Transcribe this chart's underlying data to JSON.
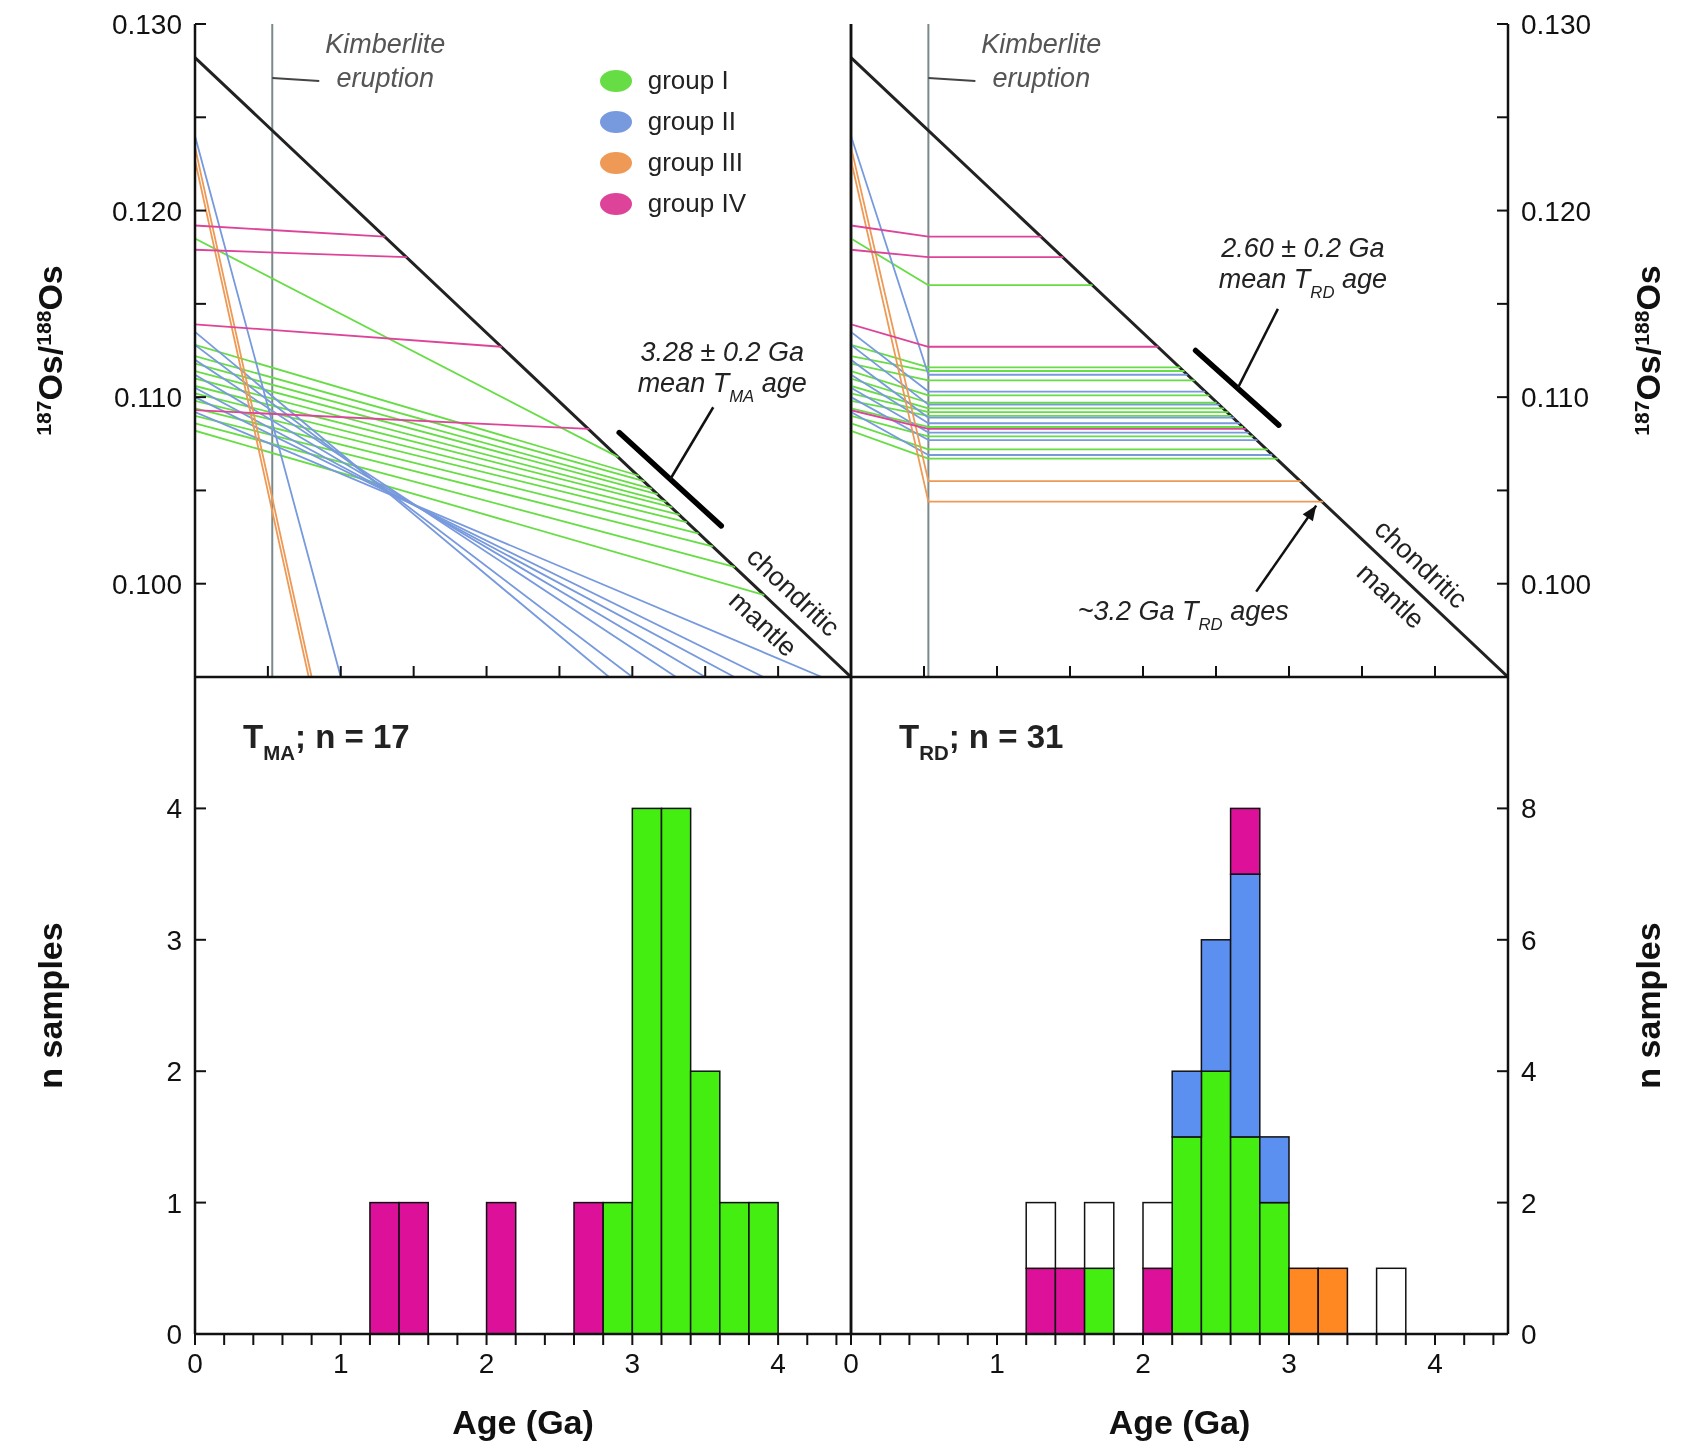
{
  "chart_data": [
    {
      "type": "line",
      "ylabel": "$^{187}$Os/$^{188}$Os",
      "xlim": [
        0,
        4.5
      ],
      "xticks": [
        0,
        0.5,
        1,
        1.5,
        2,
        2.5,
        3,
        3.5,
        4,
        4.5
      ],
      "ylim": [
        0.095,
        0.13
      ],
      "yticks": [
        {
          "value": 0.1,
          "label": "0.100"
        },
        {
          "value": 0.105,
          "label": null
        },
        {
          "value": 0.11,
          "label": "0.110"
        },
        {
          "value": 0.115,
          "label": null
        },
        {
          "value": 0.12,
          "label": "0.120"
        },
        {
          "value": 0.125,
          "label": null
        },
        {
          "value": 0.13,
          "label": "0.130"
        }
      ],
      "tick_labels": "y",
      "legend": "top right",
      "ref_lines": [
        {
          "axis": "x",
          "value": 0.53,
          "label": "Kimberlite eruption",
          "color": "#7a8a8a"
        }
      ],
      "annotations": [
        {
          "text": "3.28 ± 0.2 Ga mean T$_{MA}$ age",
          "x": 3.26,
          "y": 0.1056
        },
        {
          "text": "chondritic mantle",
          "x": 4.0,
          "y": 0.0987
        }
      ],
      "series": [
        {
          "x": [
            0,
            4.5
          ],
          "values": [
            0.1282,
            0.095
          ],
          "color": "#222222"
        },
        {
          "x": [
            2.91,
            3.61
          ],
          "values": [
            0.1081,
            0.1031
          ],
          "color": "#000000"
        },
        {
          "name": "group I",
          "x": [
            0,
            2.9
          ],
          "values": [
            0.1185,
            0.1068
          ],
          "color": "#66dd44"
        },
        {
          "x": [
            0,
            3.04
          ],
          "values": [
            0.1128,
            0.1058
          ],
          "color": "#66dd44"
        },
        {
          "x": [
            0,
            3.08
          ],
          "values": [
            0.1122,
            0.1055
          ],
          "color": "#66dd44"
        },
        {
          "x": [
            0,
            3.13
          ],
          "values": [
            0.1118,
            0.1051
          ],
          "color": "#66dd44"
        },
        {
          "x": [
            0,
            3.17
          ],
          "values": [
            0.1114,
            0.1048
          ],
          "color": "#66dd44"
        },
        {
          "x": [
            0,
            3.23
          ],
          "values": [
            0.111,
            0.1044
          ],
          "color": "#66dd44"
        },
        {
          "x": [
            0,
            3.27
          ],
          "values": [
            0.1106,
            0.1041
          ],
          "color": "#66dd44"
        },
        {
          "x": [
            0,
            3.32
          ],
          "values": [
            0.1102,
            0.1037
          ],
          "color": "#66dd44"
        },
        {
          "x": [
            0,
            3.37
          ],
          "values": [
            0.1098,
            0.1033
          ],
          "color": "#66dd44"
        },
        {
          "x": [
            0,
            3.45
          ],
          "values": [
            0.1094,
            0.1027
          ],
          "color": "#66dd44"
        },
        {
          "x": [
            0,
            3.55
          ],
          "values": [
            0.109,
            0.102
          ],
          "color": "#66dd44"
        },
        {
          "x": [
            0,
            3.7
          ],
          "values": [
            0.1086,
            0.1009
          ],
          "color": "#66dd44"
        },
        {
          "x": [
            0,
            3.9
          ],
          "values": [
            0.1082,
            0.0994
          ],
          "color": "#66dd44"
        },
        {
          "name": "group II",
          "x": [
            0,
            1.0
          ],
          "values": [
            0.124,
            0.095
          ],
          "color": "#7799dd"
        },
        {
          "x": [
            0,
            2.84
          ],
          "values": [
            0.1135,
            0.095
          ],
          "color": "#7799dd"
        },
        {
          "x": [
            0,
            3.0
          ],
          "values": [
            0.1128,
            0.095
          ],
          "color": "#7799dd"
        },
        {
          "x": [
            0,
            3.3
          ],
          "values": [
            0.112,
            0.095
          ],
          "color": "#7799dd"
        },
        {
          "x": [
            0,
            3.5
          ],
          "values": [
            0.1112,
            0.095
          ],
          "color": "#7799dd"
        },
        {
          "x": [
            0,
            3.7
          ],
          "values": [
            0.1105,
            0.095
          ],
          "color": "#7799dd"
        },
        {
          "x": [
            0,
            3.9
          ],
          "values": [
            0.11,
            0.095
          ],
          "color": "#7799dd"
        },
        {
          "x": [
            0,
            4.3
          ],
          "values": [
            0.1092,
            0.095
          ],
          "color": "#7799dd"
        },
        {
          "name": "group III",
          "x": [
            0,
            0.8
          ],
          "values": [
            0.1234,
            0.095
          ],
          "color": "#ee9955"
        },
        {
          "x": [
            0,
            0.78
          ],
          "values": [
            0.1227,
            0.095
          ],
          "color": "#ee9955"
        },
        {
          "name": "group IV",
          "x": [
            0,
            1.3
          ],
          "values": [
            0.1192,
            0.1186
          ],
          "color": "#dd4499"
        },
        {
          "x": [
            0,
            1.45
          ],
          "values": [
            0.1179,
            0.1175
          ],
          "color": "#dd4499"
        },
        {
          "x": [
            0,
            2.1
          ],
          "values": [
            0.1139,
            0.1127
          ],
          "color": "#dd4499"
        },
        {
          "x": [
            0,
            2.7
          ],
          "values": [
            0.1093,
            0.1083
          ],
          "color": "#dd4499"
        }
      ]
    },
    {
      "type": "line",
      "ylabel": "$^{187}$Os/$^{188}$Os",
      "xlim": [
        0,
        4.5
      ],
      "xticks": [
        0,
        0.5,
        1,
        1.5,
        2,
        2.5,
        3,
        3.5,
        4,
        4.5
      ],
      "ylim": [
        0.095,
        0.13
      ],
      "yticks": [
        {
          "value": 0.1,
          "label": "0.100"
        },
        {
          "value": 0.105,
          "label": null
        },
        {
          "value": 0.11,
          "label": "0.110"
        },
        {
          "value": 0.115,
          "label": null
        },
        {
          "value": 0.12,
          "label": "0.120"
        },
        {
          "value": 0.125,
          "label": null
        },
        {
          "value": 0.13,
          "label": "0.130"
        }
      ],
      "tick_labels": "y",
      "ref_lines": [
        {
          "axis": "x",
          "value": 0.53,
          "label": "Kimberlite eruption",
          "color": "#7a8a8a"
        }
      ],
      "annotations": [
        {
          "text": "2.60 ± 0.2 Ga mean T$_{RD}$ age",
          "x": 2.65,
          "y": 0.1105
        },
        {
          "text": "~3.2 Ga T$_{RD}$ ages",
          "x": 3.2,
          "y": 0.1044
        },
        {
          "text": "chondritic mantle",
          "x": 3.8,
          "y": 0.1002
        }
      ],
      "series": [
        {
          "x": [
            0,
            4.5
          ],
          "values": [
            0.1282,
            0.095
          ],
          "color": "#222222"
        },
        {
          "x": [
            2.36,
            2.93
          ],
          "values": [
            0.1125,
            0.1085
          ],
          "color": "#000000"
        },
        {
          "x": [
            0,
            0.53,
            1.65
          ],
          "values": [
            0.1185,
            0.116,
            0.116
          ],
          "color": "#66dd44"
        },
        {
          "x": [
            0,
            0.53,
            2.25
          ],
          "values": [
            0.1128,
            0.1116,
            0.1116
          ],
          "color": "#66dd44"
        },
        {
          "x": [
            0,
            0.53,
            2.28
          ],
          "values": [
            0.1122,
            0.1114,
            0.1114
          ],
          "color": "#66dd44"
        },
        {
          "x": [
            0,
            0.53,
            2.35
          ],
          "values": [
            0.1118,
            0.1109,
            0.1109
          ],
          "color": "#66dd44"
        },
        {
          "x": [
            0,
            0.53,
            2.45
          ],
          "values": [
            0.1114,
            0.1101,
            0.1101
          ],
          "color": "#66dd44"
        },
        {
          "x": [
            0,
            0.53,
            2.5
          ],
          "values": [
            0.111,
            0.1097,
            0.1097
          ],
          "color": "#66dd44"
        },
        {
          "x": [
            0,
            0.53,
            2.55
          ],
          "values": [
            0.1106,
            0.1094,
            0.1094
          ],
          "color": "#66dd44"
        },
        {
          "x": [
            0,
            0.53,
            2.58
          ],
          "values": [
            0.1102,
            0.1092,
            0.1092
          ],
          "color": "#66dd44"
        },
        {
          "x": [
            0,
            0.53,
            2.6
          ],
          "values": [
            0.1098,
            0.109,
            0.109
          ],
          "color": "#66dd44"
        },
        {
          "x": [
            0,
            0.53,
            2.68
          ],
          "values": [
            0.1094,
            0.1084,
            0.1084
          ],
          "color": "#66dd44"
        },
        {
          "x": [
            0,
            0.53,
            2.75
          ],
          "values": [
            0.109,
            0.1079,
            0.1079
          ],
          "color": "#66dd44"
        },
        {
          "x": [
            0,
            0.53,
            2.85
          ],
          "values": [
            0.1086,
            0.1072,
            0.1072
          ],
          "color": "#66dd44"
        },
        {
          "x": [
            0,
            0.53,
            2.92
          ],
          "values": [
            0.1082,
            0.1067,
            0.1067
          ],
          "color": "#66dd44"
        },
        {
          "x": [
            0,
            0.53,
            2.3
          ],
          "values": [
            0.124,
            0.1112,
            0.1112
          ],
          "color": "#7799dd"
        },
        {
          "x": [
            0,
            0.53,
            2.42
          ],
          "values": [
            0.1135,
            0.1103,
            0.1103
          ],
          "color": "#7799dd"
        },
        {
          "x": [
            0,
            0.53,
            2.52
          ],
          "values": [
            0.1128,
            0.1096,
            0.1096
          ],
          "color": "#7799dd"
        },
        {
          "x": [
            0,
            0.53,
            2.62
          ],
          "values": [
            0.112,
            0.1089,
            0.1089
          ],
          "color": "#7799dd"
        },
        {
          "x": [
            0,
            0.53,
            2.66
          ],
          "values": [
            0.1112,
            0.1086,
            0.1086
          ],
          "color": "#7799dd"
        },
        {
          "x": [
            0,
            0.53,
            2.72
          ],
          "values": [
            0.1105,
            0.1081,
            0.1081
          ],
          "color": "#7799dd"
        },
        {
          "x": [
            0,
            0.53,
            2.78
          ],
          "values": [
            0.11,
            0.1077,
            0.1077
          ],
          "color": "#7799dd"
        },
        {
          "x": [
            0,
            0.53,
            2.88
          ],
          "values": [
            0.1092,
            0.1069,
            0.1069
          ],
          "color": "#7799dd"
        },
        {
          "x": [
            0,
            0.53,
            3.08
          ],
          "values": [
            0.1234,
            0.1055,
            0.1055
          ],
          "color": "#ee9955"
        },
        {
          "x": [
            0,
            0.53,
            3.23
          ],
          "values": [
            0.1227,
            0.1044,
            0.1044
          ],
          "color": "#ee9955"
        },
        {
          "x": [
            0,
            0.53,
            1.3
          ],
          "values": [
            0.1192,
            0.1186,
            0.1186
          ],
          "color": "#dd4499"
        },
        {
          "x": [
            0,
            0.53,
            1.45
          ],
          "values": [
            0.1179,
            0.1175,
            0.1175
          ],
          "color": "#dd4499"
        },
        {
          "x": [
            0,
            0.53,
            2.1
          ],
          "values": [
            0.1139,
            0.1127,
            0.1127
          ],
          "color": "#dd4499"
        },
        {
          "x": [
            0,
            0.53,
            2.7
          ],
          "values": [
            0.1093,
            0.1083,
            0.1083
          ],
          "color": "#dd4499"
        }
      ]
    },
    {
      "type": "bar",
      "stacked": true,
      "xlabel": "Age (Ga)",
      "ylabel": "n samples",
      "xlim": [
        0,
        4.5
      ],
      "xticks": [
        0,
        {
          "value": 0.2,
          "label": null
        },
        {
          "value": 0.4,
          "label": null
        },
        {
          "value": 0.6,
          "label": null
        },
        {
          "value": 0.8,
          "label": null
        },
        1,
        {
          "value": 1.2,
          "label": null
        },
        {
          "value": 1.4,
          "label": null
        },
        {
          "value": 1.6,
          "label": null
        },
        {
          "value": 1.8,
          "label": null
        },
        2,
        {
          "value": 2.2,
          "label": null
        },
        {
          "value": 2.4,
          "label": null
        },
        {
          "value": 2.6,
          "label": null
        },
        {
          "value": 2.8,
          "label": null
        },
        3,
        {
          "value": 3.2,
          "label": null
        },
        {
          "value": 3.4,
          "label": null
        },
        {
          "value": 3.6,
          "label": null
        },
        {
          "value": 3.8,
          "label": null
        },
        4,
        {
          "value": 4.2,
          "label": null
        },
        {
          "value": 4.4,
          "label": null
        }
      ],
      "ylim": [
        0,
        5
      ],
      "yticks": [
        0,
        1,
        2,
        3,
        4
      ],
      "annotations": [
        "T$_{MA}$; n = 17"
      ],
      "x": [
        1.3,
        1.5,
        1.7,
        1.9,
        2.1,
        2.3,
        2.5,
        2.7,
        2.9,
        3.1,
        3.3,
        3.5,
        3.7,
        3.9
      ],
      "series": [
        {
          "color": "#dd1199",
          "values": [
            1,
            1,
            0,
            0,
            1,
            0,
            0,
            1,
            0,
            0,
            0,
            0,
            0,
            0
          ]
        },
        {
          "color": "#44ee11",
          "values": [
            0,
            0,
            0,
            0,
            0,
            0,
            0,
            0,
            1,
            4,
            4,
            2,
            1,
            1
          ]
        }
      ]
    },
    {
      "type": "bar",
      "stacked": true,
      "xlabel": "Age (Ga)",
      "ylabel": "n samples",
      "xlim": [
        0,
        4.5
      ],
      "xticks": [
        0,
        {
          "value": 0.2,
          "label": null
        },
        {
          "value": 0.4,
          "label": null
        },
        {
          "value": 0.6,
          "label": null
        },
        {
          "value": 0.8,
          "label": null
        },
        1,
        {
          "value": 1.2,
          "label": null
        },
        {
          "value": 1.4,
          "label": null
        },
        {
          "value": 1.6,
          "label": null
        },
        {
          "value": 1.8,
          "label": null
        },
        2,
        {
          "value": 2.2,
          "label": null
        },
        {
          "value": 2.4,
          "label": null
        },
        {
          "value": 2.6,
          "label": null
        },
        {
          "value": 2.8,
          "label": null
        },
        3,
        {
          "value": 3.2,
          "label": null
        },
        {
          "value": 3.4,
          "label": null
        },
        {
          "value": 3.6,
          "label": null
        },
        {
          "value": 3.8,
          "label": null
        },
        4,
        {
          "value": 4.2,
          "label": null
        },
        {
          "value": 4.4,
          "label": null
        }
      ],
      "ylim": [
        0,
        10
      ],
      "yticks": [
        0,
        2,
        4,
        6,
        8
      ],
      "annotations": [
        "T$_{RD}$; n = 31"
      ],
      "x": [
        1.3,
        1.5,
        1.7,
        1.9,
        2.1,
        2.3,
        2.5,
        2.7,
        2.9,
        3.1,
        3.3,
        3.5,
        3.7
      ],
      "series": [
        {
          "color": "#dd1199",
          "values": [
            1,
            1,
            0,
            0,
            1,
            0,
            0,
            0,
            0,
            0,
            0,
            0,
            0
          ]
        },
        {
          "color": "#44ee11",
          "values": [
            0,
            0,
            1,
            0,
            0,
            3,
            4,
            3,
            2,
            0,
            0,
            0,
            0
          ]
        },
        {
          "color": "#5b8ff0",
          "values": [
            0,
            0,
            0,
            0,
            0,
            1,
            2,
            4,
            1,
            0,
            0,
            0,
            0
          ]
        },
        {
          "color": "#ff8822",
          "values": [
            0,
            0,
            0,
            0,
            0,
            0,
            0,
            0,
            0,
            1,
            1,
            0,
            0
          ]
        },
        {
          "color": "#dd1199",
          "values": [
            0,
            0,
            0,
            0,
            0,
            0,
            0,
            1,
            0,
            0,
            0,
            0,
            0
          ]
        },
        {
          "color": "#ffffff",
          "values": [
            1,
            0,
            1,
            0,
            1,
            0,
            0,
            0,
            0,
            0,
            0,
            0,
            1
          ]
        }
      ]
    }
  ]
}
